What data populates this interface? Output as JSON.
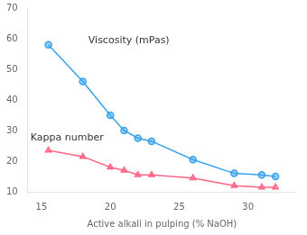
{
  "chart_data": {
    "type": "line",
    "xlabel": "Active alkali in pulping (% NaOH)",
    "x": [
      15.5,
      18,
      20,
      21,
      22,
      23,
      26,
      29,
      31,
      32
    ],
    "series": [
      {
        "values": [
          58,
          46,
          35,
          30,
          27.5,
          26.5,
          20.5,
          16,
          15.5,
          15
        ],
        "marker": "circle"
      },
      {
        "values": [
          23.5,
          21.5,
          18,
          17,
          15.5,
          15.5,
          14.5,
          12,
          11.5,
          11.5
        ],
        "marker": "triangle"
      }
    ],
    "annotations": [
      {
        "text": "Viscosity (mPas)",
        "x": 18.4,
        "y": 59.5
      },
      {
        "text": "Kappa number",
        "x": 14.2,
        "y": 27.5
      }
    ],
    "xlim": [
      14.0,
      33.5
    ],
    "ylim": [
      10,
      70
    ],
    "xticks": [
      15,
      20,
      25,
      30
    ],
    "yticks": [
      10,
      20,
      30,
      40,
      50,
      60,
      70
    ],
    "grid": false
  }
}
